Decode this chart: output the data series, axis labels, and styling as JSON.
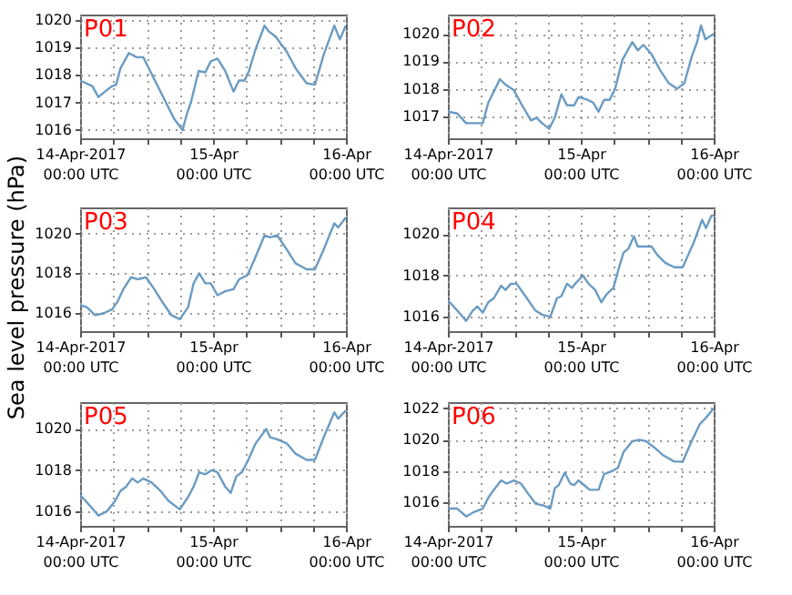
{
  "chart_data": [
    {
      "type": "line",
      "title": "P01",
      "xlim": [
        "2017-04-14T00:00",
        "2017-04-16T00:00"
      ],
      "ylim": [
        1015.7,
        1020.2
      ],
      "yticks": [
        1016,
        1017,
        1018,
        1019,
        1020
      ],
      "grid": true,
      "xticks": [
        {
          "value": "2017-04-14T00:00",
          "label": "14-Apr-2017\n00:00 UTC"
        },
        {
          "value": "2017-04-14T06:00",
          "label": null
        },
        {
          "value": "2017-04-14T12:00",
          "label": null
        },
        {
          "value": "2017-04-14T18:00",
          "label": null
        },
        {
          "value": "2017-04-15T00:00",
          "label": "15-Apr\n00:00 UTC"
        },
        {
          "value": "2017-04-15T06:00",
          "label": null
        },
        {
          "value": "2017-04-15T12:00",
          "label": null
        },
        {
          "value": "2017-04-15T18:00",
          "label": null
        },
        {
          "value": "2017-04-16T00:00",
          "label": "16-Apr\n00:00 UTC"
        }
      ],
      "x": [
        "2017-04-14T00:00",
        "2017-04-14T02:12",
        "2017-04-14T03:18",
        "2017-04-14T04:48",
        "2017-04-14T05:48",
        "2017-04-14T06:30",
        "2017-04-14T07:18",
        "2017-04-14T08:48",
        "2017-04-14T10:12",
        "2017-04-14T11:24",
        "2017-04-14T12:24",
        "2017-04-14T14:00",
        "2017-04-14T15:30",
        "2017-04-14T17:00",
        "2017-04-14T18:30",
        "2017-04-14T19:18",
        "2017-04-14T20:00",
        "2017-04-14T21:24",
        "2017-04-14T22:36",
        "2017-04-14T23:36",
        "2017-04-15T00:48",
        "2017-04-15T02:12",
        "2017-04-15T03:42",
        "2017-04-15T04:42",
        "2017-04-15T05:42",
        "2017-04-15T06:30",
        "2017-04-15T07:42",
        "2017-04-15T09:18",
        "2017-04-15T10:00",
        "2017-04-15T11:18",
        "2017-04-15T13:18",
        "2017-04-15T14:54",
        "2017-04-15T16:54",
        "2017-04-15T18:24",
        "2017-04-15T20:00",
        "2017-04-15T21:54",
        "2017-04-15T22:54",
        "2017-04-16T00:00"
      ],
      "series": [
        {
          "color": "#6a9bc3",
          "values": [
            1017.8,
            1017.6,
            1017.2,
            1017.45,
            1017.6,
            1017.65,
            1018.25,
            1018.8,
            1018.65,
            1018.65,
            1018.25,
            1017.6,
            1017.0,
            1016.4,
            1016.0,
            1016.6,
            1017.0,
            1018.15,
            1018.1,
            1018.5,
            1018.6,
            1018.15,
            1017.4,
            1017.8,
            1017.8,
            1018.15,
            1018.95,
            1019.8,
            1019.6,
            1019.4,
            1018.85,
            1018.25,
            1017.7,
            1017.65,
            1018.75,
            1019.8,
            1019.3,
            1019.8
          ]
        }
      ]
    },
    {
      "type": "line",
      "title": "P02",
      "xlim": [
        "2017-04-14T00:00",
        "2017-04-16T00:00"
      ],
      "ylim": [
        1016.2,
        1020.7
      ],
      "yticks": [
        1017,
        1018,
        1019,
        1020
      ],
      "grid": true,
      "xticks": [
        {
          "value": "2017-04-14T00:00",
          "label": "14-Apr-2017\n00:00 UTC"
        },
        {
          "value": "2017-04-14T06:00",
          "label": null
        },
        {
          "value": "2017-04-14T12:00",
          "label": null
        },
        {
          "value": "2017-04-14T18:00",
          "label": null
        },
        {
          "value": "2017-04-15T00:00",
          "label": "15-Apr\n00:00 UTC"
        },
        {
          "value": "2017-04-15T06:00",
          "label": null
        },
        {
          "value": "2017-04-15T12:00",
          "label": null
        },
        {
          "value": "2017-04-15T18:00",
          "label": null
        },
        {
          "value": "2017-04-16T00:00",
          "label": "16-Apr\n00:00 UTC"
        }
      ],
      "x": [
        "2017-04-14T00:00",
        "2017-04-14T01:42",
        "2017-04-14T03:18",
        "2017-04-14T04:48",
        "2017-04-14T06:18",
        "2017-04-14T07:18",
        "2017-04-14T08:18",
        "2017-04-14T09:24",
        "2017-04-14T10:24",
        "2017-04-14T11:54",
        "2017-04-14T13:24",
        "2017-04-14T15:00",
        "2017-04-14T16:00",
        "2017-04-14T17:00",
        "2017-04-14T18:18",
        "2017-04-14T19:18",
        "2017-04-14T20:30",
        "2017-04-14T21:30",
        "2017-04-14T22:48",
        "2017-04-14T23:36",
        "2017-04-15T01:12",
        "2017-04-15T02:12",
        "2017-04-15T03:12",
        "2017-04-15T04:12",
        "2017-04-15T05:12",
        "2017-04-15T06:12",
        "2017-04-15T07:30",
        "2017-04-15T09:18",
        "2017-04-15T10:18",
        "2017-04-15T11:18",
        "2017-04-15T12:48",
        "2017-04-15T14:24",
        "2017-04-15T15:54",
        "2017-04-15T17:24",
        "2017-04-15T18:42",
        "2017-04-15T20:00",
        "2017-04-15T21:00",
        "2017-04-15T21:42",
        "2017-04-15T22:30",
        "2017-04-16T00:00"
      ],
      "series": [
        {
          "color": "#6a9bc3",
          "values": [
            1017.17,
            1017.1,
            1016.75,
            1016.75,
            1016.75,
            1017.5,
            1017.9,
            1018.35,
            1018.15,
            1017.95,
            1017.4,
            1016.85,
            1016.95,
            1016.75,
            1016.55,
            1016.95,
            1017.8,
            1017.4,
            1017.4,
            1017.7,
            1017.6,
            1017.5,
            1017.17,
            1017.6,
            1017.6,
            1018.0,
            1019.05,
            1019.7,
            1019.4,
            1019.6,
            1019.25,
            1018.65,
            1018.2,
            1018.0,
            1018.2,
            1019.15,
            1019.7,
            1020.3,
            1019.8,
            1020.0
          ]
        }
      ]
    },
    {
      "type": "line",
      "title": "P03",
      "ylabel": "Sea level pressure (hPa)",
      "xlim": [
        "2017-04-14T00:00",
        "2017-04-16T00:00"
      ],
      "ylim": [
        1015.1,
        1021.3
      ],
      "yticks": [
        1016,
        1018,
        1020
      ],
      "grid": true,
      "xticks": [
        {
          "value": "2017-04-14T00:00",
          "label": "14-Apr-2017\n00:00 UTC"
        },
        {
          "value": "2017-04-14T06:00",
          "label": null
        },
        {
          "value": "2017-04-14T12:00",
          "label": null
        },
        {
          "value": "2017-04-14T18:00",
          "label": null
        },
        {
          "value": "2017-04-15T00:00",
          "label": "15-Apr\n00:00 UTC"
        },
        {
          "value": "2017-04-15T06:00",
          "label": null
        },
        {
          "value": "2017-04-15T12:00",
          "label": null
        },
        {
          "value": "2017-04-15T18:00",
          "label": null
        },
        {
          "value": "2017-04-16T00:00",
          "label": "16-Apr\n00:00 UTC"
        }
      ],
      "x": [
        "2017-04-14T00:00",
        "2017-04-14T01:12",
        "2017-04-14T02:42",
        "2017-04-14T04:18",
        "2017-04-14T05:48",
        "2017-04-14T06:48",
        "2017-04-14T07:48",
        "2017-04-14T09:12",
        "2017-04-14T10:24",
        "2017-04-14T11:54",
        "2017-04-14T13:24",
        "2017-04-14T15:00",
        "2017-04-14T16:30",
        "2017-04-14T18:00",
        "2017-04-14T19:30",
        "2017-04-14T20:30",
        "2017-04-14T21:30",
        "2017-04-14T22:36",
        "2017-04-14T23:36",
        "2017-04-15T00:48",
        "2017-04-15T02:12",
        "2017-04-15T03:42",
        "2017-04-15T04:42",
        "2017-04-15T06:12",
        "2017-04-15T07:30",
        "2017-04-15T09:18",
        "2017-04-15T10:18",
        "2017-04-15T11:36",
        "2017-04-15T13:18",
        "2017-04-15T14:54",
        "2017-04-15T16:54",
        "2017-04-15T18:24",
        "2017-04-15T20:00",
        "2017-04-15T21:54",
        "2017-04-15T22:36",
        "2017-04-16T00:00"
      ],
      "series": [
        {
          "color": "#6a9bc3",
          "values": [
            1016.4,
            1016.3,
            1015.9,
            1016.0,
            1016.2,
            1016.6,
            1017.2,
            1017.8,
            1017.7,
            1017.8,
            1017.2,
            1016.5,
            1015.9,
            1015.7,
            1016.3,
            1017.5,
            1018.0,
            1017.5,
            1017.5,
            1016.9,
            1017.1,
            1017.2,
            1017.7,
            1017.9,
            1018.7,
            1019.9,
            1019.8,
            1019.9,
            1019.2,
            1018.5,
            1018.2,
            1018.2,
            1019.2,
            1020.5,
            1020.3,
            1020.8
          ]
        }
      ]
    },
    {
      "type": "line",
      "title": "P04",
      "xlim": [
        "2017-04-14T00:00",
        "2017-04-16T00:00"
      ],
      "ylim": [
        1015.3,
        1021.3
      ],
      "yticks": [
        1016,
        1018,
        1020
      ],
      "grid": true,
      "xticks": [
        {
          "value": "2017-04-14T00:00",
          "label": "14-Apr-2017\n00:00 UTC"
        },
        {
          "value": "2017-04-14T06:00",
          "label": null
        },
        {
          "value": "2017-04-14T12:00",
          "label": null
        },
        {
          "value": "2017-04-14T18:00",
          "label": null
        },
        {
          "value": "2017-04-15T00:00",
          "label": "15-Apr\n00:00 UTC"
        },
        {
          "value": "2017-04-15T06:00",
          "label": null
        },
        {
          "value": "2017-04-15T12:00",
          "label": null
        },
        {
          "value": "2017-04-15T18:00",
          "label": null
        },
        {
          "value": "2017-04-16T00:00",
          "label": "16-Apr\n00:00 UTC"
        }
      ],
      "x": [
        "2017-04-14T00:00",
        "2017-04-14T01:42",
        "2017-04-14T03:18",
        "2017-04-14T04:30",
        "2017-04-14T05:18",
        "2017-04-14T06:18",
        "2017-04-14T07:18",
        "2017-04-14T08:18",
        "2017-04-14T09:36",
        "2017-04-14T10:24",
        "2017-04-14T11:24",
        "2017-04-14T12:24",
        "2017-04-14T14:00",
        "2017-04-14T15:48",
        "2017-04-14T17:00",
        "2017-04-14T18:30",
        "2017-04-14T19:42",
        "2017-04-14T20:30",
        "2017-04-14T21:30",
        "2017-04-14T22:24",
        "2017-04-14T23:00",
        "2017-04-15T00:24",
        "2017-04-15T01:24",
        "2017-04-15T02:36",
        "2017-04-15T03:42",
        "2017-04-15T04:42",
        "2017-04-15T05:54",
        "2017-04-15T06:42",
        "2017-04-15T07:42",
        "2017-04-15T08:36",
        "2017-04-15T09:36",
        "2017-04-15T10:18",
        "2017-04-15T11:36",
        "2017-04-15T12:48",
        "2017-04-15T13:48",
        "2017-04-15T15:18",
        "2017-04-15T16:54",
        "2017-04-15T18:24",
        "2017-04-15T19:24",
        "2017-04-15T20:24",
        "2017-04-15T21:54",
        "2017-04-15T22:36",
        "2017-04-15T23:36",
        "2017-04-16T00:00"
      ],
      "series": [
        {
          "color": "#6a9bc3",
          "values": [
            1016.8,
            1016.3,
            1015.8,
            1016.3,
            1016.5,
            1016.2,
            1016.7,
            1016.9,
            1017.5,
            1017.3,
            1017.6,
            1017.6,
            1017.0,
            1016.3,
            1016.1,
            1016.0,
            1016.9,
            1017.0,
            1017.6,
            1017.4,
            1017.6,
            1018.0,
            1017.6,
            1017.3,
            1016.7,
            1017.1,
            1017.4,
            1018.2,
            1019.1,
            1019.3,
            1019.9,
            1019.4,
            1019.4,
            1019.4,
            1019.0,
            1018.6,
            1018.4,
            1018.4,
            1019.0,
            1019.6,
            1020.7,
            1020.3,
            1020.9,
            1020.9
          ]
        }
      ]
    },
    {
      "type": "line",
      "title": "P05",
      "xlim": [
        "2017-04-14T00:00",
        "2017-04-16T00:00"
      ],
      "ylim": [
        1015.3,
        1021.3
      ],
      "yticks": [
        1016,
        1018,
        1020
      ],
      "grid": true,
      "xticks": [
        {
          "value": "2017-04-14T00:00",
          "label": "14-Apr-2017\n00:00 UTC"
        },
        {
          "value": "2017-04-14T06:00",
          "label": null
        },
        {
          "value": "2017-04-14T12:00",
          "label": null
        },
        {
          "value": "2017-04-14T18:00",
          "label": null
        },
        {
          "value": "2017-04-15T00:00",
          "label": "15-Apr\n00:00 UTC"
        },
        {
          "value": "2017-04-15T06:00",
          "label": null
        },
        {
          "value": "2017-04-15T12:00",
          "label": null
        },
        {
          "value": "2017-04-15T18:00",
          "label": null
        },
        {
          "value": "2017-04-16T00:00",
          "label": "16-Apr\n00:00 UTC"
        }
      ],
      "x": [
        "2017-04-14T00:00",
        "2017-04-14T01:42",
        "2017-04-14T03:18",
        "2017-04-14T04:48",
        "2017-04-14T06:18",
        "2017-04-14T07:18",
        "2017-04-14T08:18",
        "2017-04-14T09:24",
        "2017-04-14T10:24",
        "2017-04-14T11:24",
        "2017-04-14T12:54",
        "2017-04-14T14:30",
        "2017-04-14T16:00",
        "2017-04-14T18:00",
        "2017-04-14T19:30",
        "2017-04-14T20:30",
        "2017-04-14T21:30",
        "2017-04-14T22:36",
        "2017-04-14T23:48",
        "2017-04-15T00:48",
        "2017-04-15T02:12",
        "2017-04-15T03:12",
        "2017-04-15T04:12",
        "2017-04-15T05:12",
        "2017-04-15T06:12",
        "2017-04-15T07:42",
        "2017-04-15T09:36",
        "2017-04-15T10:18",
        "2017-04-15T11:36",
        "2017-04-15T13:18",
        "2017-04-15T14:54",
        "2017-04-15T16:54",
        "2017-04-15T18:24",
        "2017-04-15T20:00",
        "2017-04-15T21:54",
        "2017-04-15T22:36",
        "2017-04-16T00:00"
      ],
      "series": [
        {
          "color": "#6a9bc3",
          "values": [
            1016.8,
            1016.3,
            1015.8,
            1016.0,
            1016.5,
            1017.0,
            1017.2,
            1017.6,
            1017.4,
            1017.6,
            1017.4,
            1017.0,
            1016.5,
            1016.1,
            1016.7,
            1017.2,
            1017.9,
            1017.8,
            1018.0,
            1017.9,
            1017.2,
            1016.9,
            1017.7,
            1017.9,
            1018.4,
            1019.3,
            1020.0,
            1019.6,
            1019.5,
            1019.3,
            1018.8,
            1018.5,
            1018.5,
            1019.6,
            1020.8,
            1020.5,
            1020.9
          ]
        }
      ]
    },
    {
      "type": "line",
      "title": "P06",
      "xlim": [
        "2017-04-14T00:00",
        "2017-04-16T00:00"
      ],
      "ylim": [
        1014.5,
        1022.4
      ],
      "yticks": [
        1016,
        1018,
        1020,
        1022
      ],
      "grid": true,
      "xticks": [
        {
          "value": "2017-04-14T00:00",
          "label": "14-Apr-2017\n00:00 UTC"
        },
        {
          "value": "2017-04-14T06:00",
          "label": null
        },
        {
          "value": "2017-04-14T12:00",
          "label": null
        },
        {
          "value": "2017-04-14T18:00",
          "label": null
        },
        {
          "value": "2017-04-15T00:00",
          "label": "15-Apr\n00:00 UTC"
        },
        {
          "value": "2017-04-15T06:00",
          "label": null
        },
        {
          "value": "2017-04-15T12:00",
          "label": null
        },
        {
          "value": "2017-04-15T18:00",
          "label": null
        },
        {
          "value": "2017-04-16T00:00",
          "label": "16-Apr\n00:00 UTC"
        }
      ],
      "x": [
        "2017-04-14T00:00",
        "2017-04-14T01:42",
        "2017-04-14T03:18",
        "2017-04-14T04:48",
        "2017-04-14T06:18",
        "2017-04-14T07:18",
        "2017-04-14T08:18",
        "2017-04-14T09:36",
        "2017-04-14T10:36",
        "2017-04-14T11:54",
        "2017-04-14T13:12",
        "2017-04-14T14:36",
        "2017-04-14T15:54",
        "2017-04-14T17:18",
        "2017-04-14T18:30",
        "2017-04-14T19:18",
        "2017-04-14T20:00",
        "2017-04-14T21:06",
        "2017-04-14T22:06",
        "2017-04-14T22:48",
        "2017-04-14T23:36",
        "2017-04-15T00:36",
        "2017-04-15T01:36",
        "2017-04-15T03:12",
        "2017-04-15T04:12",
        "2017-04-15T05:42",
        "2017-04-15T06:42",
        "2017-04-15T07:42",
        "2017-04-15T09:18",
        "2017-04-15T10:36",
        "2017-04-15T11:48",
        "2017-04-15T13:18",
        "2017-04-15T14:54",
        "2017-04-15T16:54",
        "2017-04-15T18:24",
        "2017-04-15T20:00",
        "2017-04-15T21:30",
        "2017-04-15T22:36",
        "2017-04-16T00:00"
      ],
      "series": [
        {
          "color": "#6a9bc3",
          "values": [
            1015.6,
            1015.6,
            1015.1,
            1015.4,
            1015.6,
            1016.3,
            1016.8,
            1017.4,
            1017.2,
            1017.4,
            1017.2,
            1016.5,
            1015.9,
            1015.8,
            1015.6,
            1016.9,
            1017.1,
            1017.9,
            1017.2,
            1017.1,
            1017.4,
            1017.1,
            1016.8,
            1016.8,
            1017.8,
            1018.0,
            1018.2,
            1019.2,
            1019.9,
            1020.0,
            1019.9,
            1019.5,
            1019.0,
            1018.6,
            1018.6,
            1019.9,
            1021.0,
            1021.4,
            1022.0
          ]
        }
      ]
    }
  ]
}
